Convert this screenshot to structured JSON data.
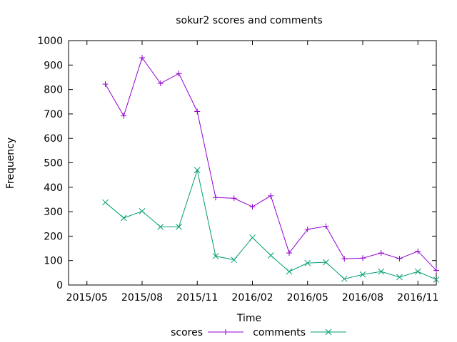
{
  "chart_data": {
    "type": "line",
    "title": "sokur2 scores and comments",
    "xlabel": "Time",
    "ylabel": "Frequency",
    "ylim": [
      0,
      1000
    ],
    "yticks": [
      0,
      100,
      200,
      300,
      400,
      500,
      600,
      700,
      800,
      900,
      1000
    ],
    "xlim": [
      "2015-04",
      "2016-12"
    ],
    "xticks": [
      "2015/05",
      "2015/08",
      "2015/11",
      "2016/02",
      "2016/05",
      "2016/08",
      "2016/11"
    ],
    "x": [
      "2015-06",
      "2015-07",
      "2015-08",
      "2015-09",
      "2015-10",
      "2015-11",
      "2015-12",
      "2016-01",
      "2016-02",
      "2016-03",
      "2016-04",
      "2016-05",
      "2016-06",
      "2016-07",
      "2016-08",
      "2016-09",
      "2016-10",
      "2016-11",
      "2016-12"
    ],
    "grid": false,
    "legend_position": "bottom",
    "series": [
      {
        "name": "scores",
        "color": "#9400d3",
        "marker": "+",
        "values": [
          822,
          692,
          930,
          825,
          865,
          710,
          358,
          355,
          320,
          365,
          131,
          228,
          240,
          107,
          110,
          131,
          108,
          138,
          60
        ]
      },
      {
        "name": "comments",
        "color": "#009e73",
        "marker": "x",
        "values": [
          338,
          274,
          302,
          238,
          238,
          470,
          118,
          103,
          194,
          121,
          55,
          90,
          93,
          25,
          43,
          55,
          32,
          55,
          22
        ]
      }
    ]
  }
}
